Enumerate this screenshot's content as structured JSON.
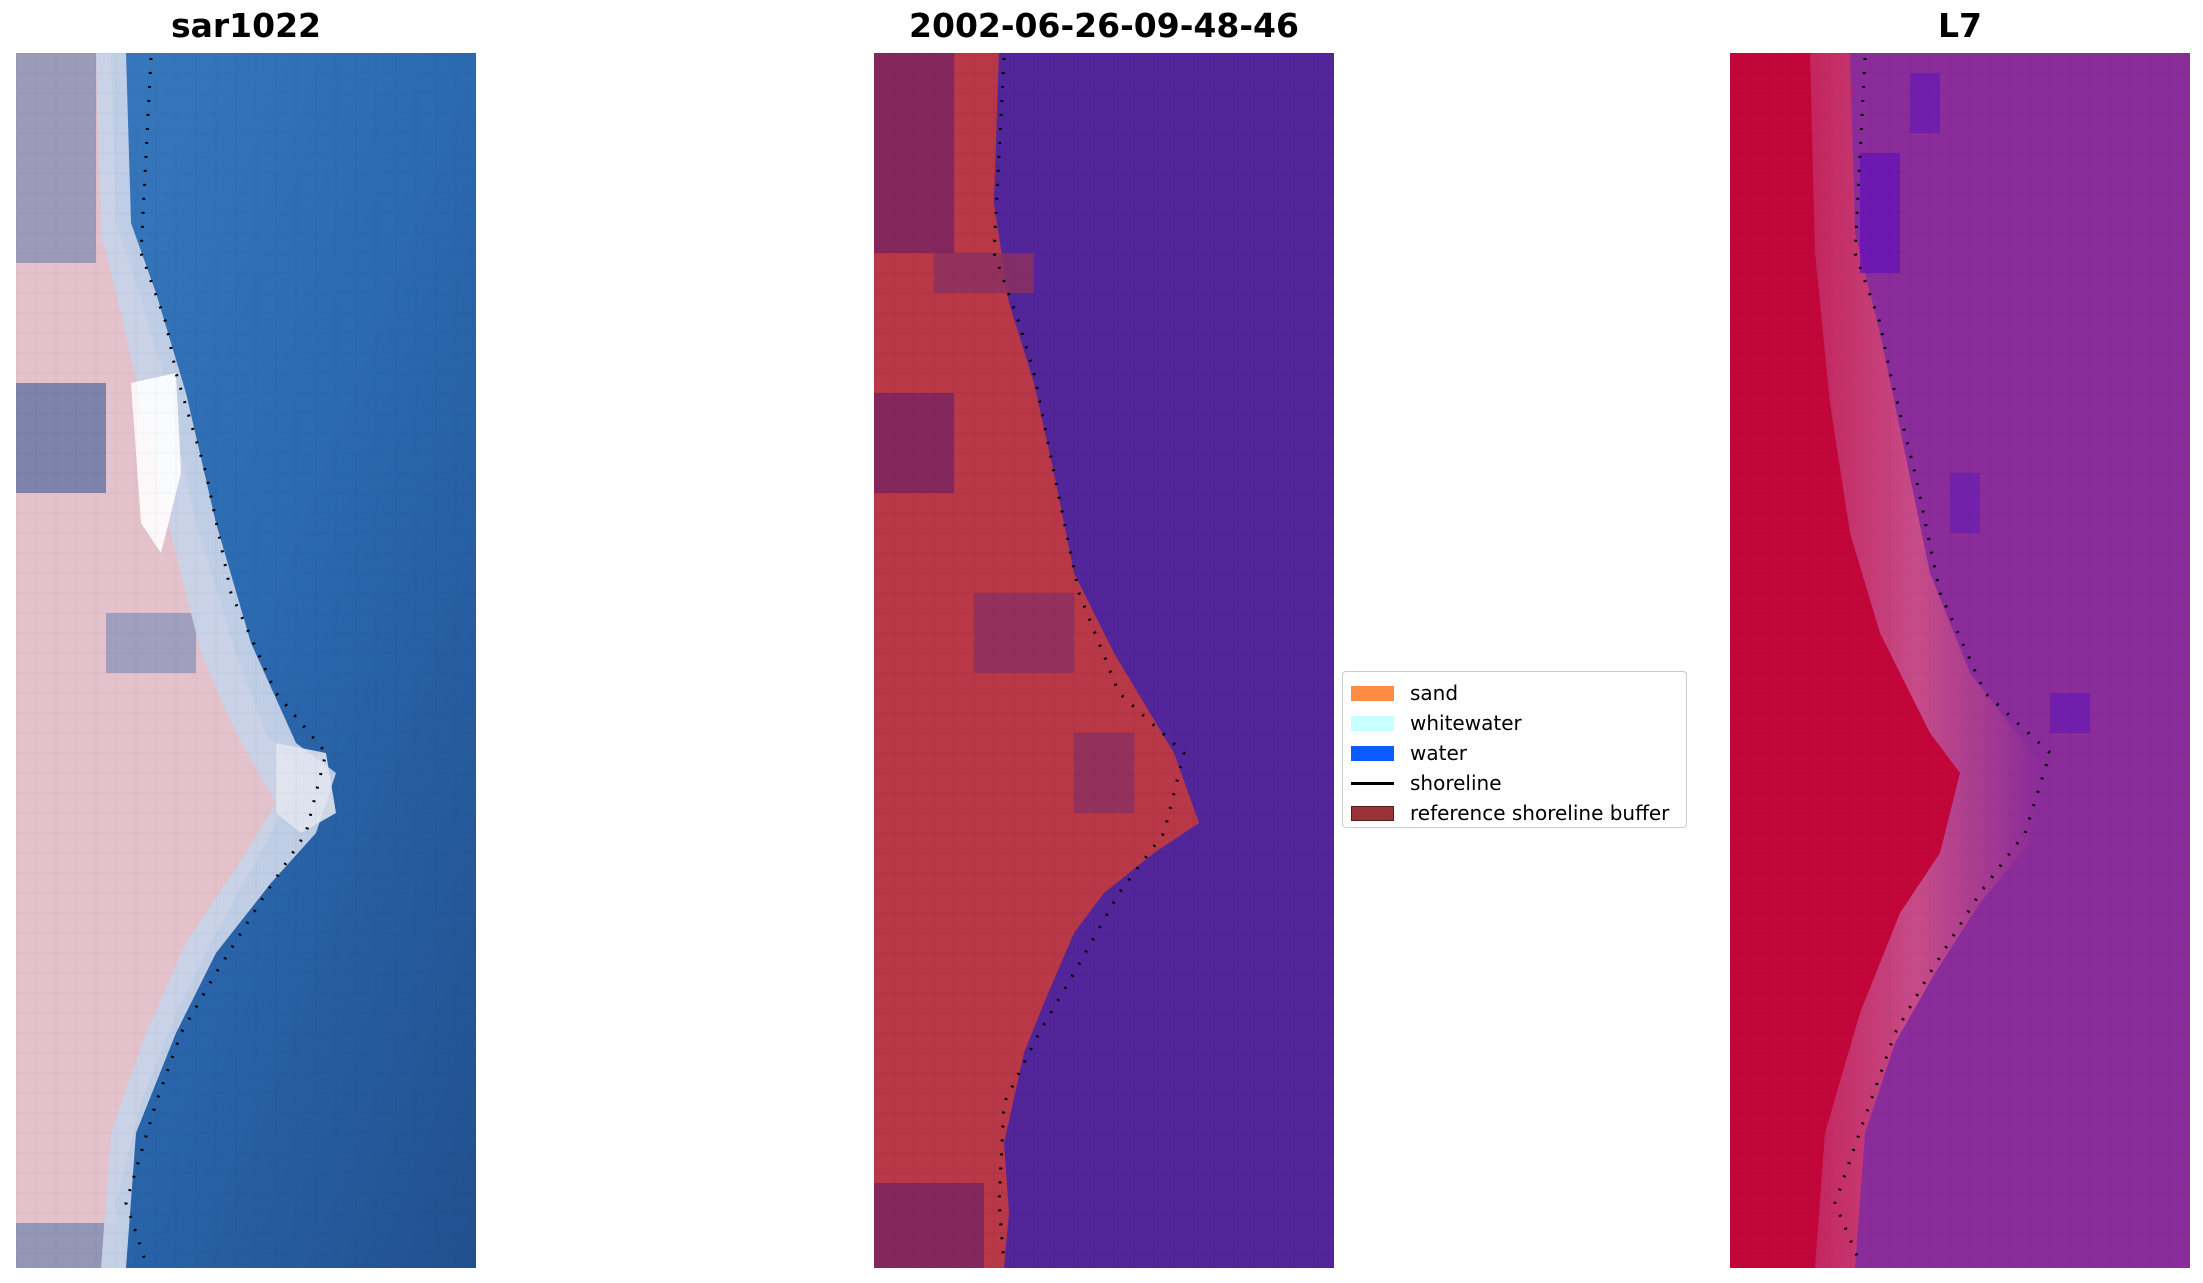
{
  "panels": {
    "left": {
      "title": "sar1022"
    },
    "middle": {
      "title": "2002-06-26-09-48-46"
    },
    "right": {
      "title": "L7"
    }
  },
  "legend": {
    "items": [
      {
        "label": "sand",
        "color": "#ff8c42",
        "kind": "patch"
      },
      {
        "label": "whitewater",
        "color": "#c8ffff",
        "kind": "patch"
      },
      {
        "label": "water",
        "color": "#0a5cff",
        "kind": "patch"
      },
      {
        "label": "shoreline",
        "color": "#000000",
        "kind": "line"
      },
      {
        "label": "reference shoreline buffer",
        "color": "#9a3338",
        "kind": "patch"
      }
    ]
  },
  "colors": {
    "rgb_water": "#2e6bb0",
    "rgb_land": "#e6c3cd",
    "class_water": "#53259a",
    "class_buffer": "#b83848",
    "index_land": "#c2063a",
    "index_water": "#8a2c9a"
  }
}
